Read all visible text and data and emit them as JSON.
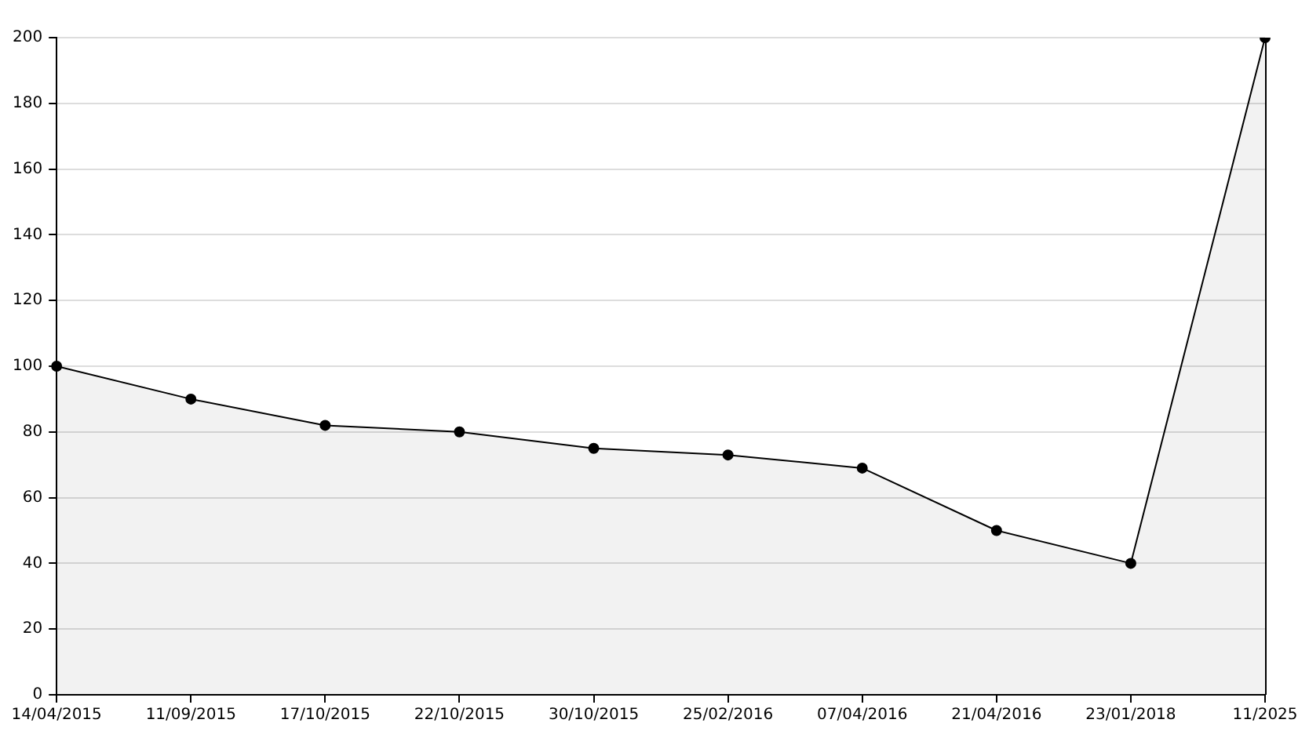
{
  "chart_data": {
    "type": "area",
    "categories": [
      "14/04/2015",
      "11/09/2015",
      "17/10/2015",
      "22/10/2015",
      "30/10/2015",
      "25/02/2016",
      "07/04/2016",
      "21/04/2016",
      "23/01/2018",
      "11/2025"
    ],
    "series": [
      {
        "color": "#000000",
        "values": [
          100,
          90,
          82,
          80,
          75,
          73,
          69,
          50,
          40,
          200
        ]
      }
    ],
    "ylim": [
      0,
      200
    ],
    "yticks": [
      0,
      20,
      40,
      60,
      80,
      100,
      120,
      140,
      160,
      180,
      200
    ],
    "grid": "y",
    "legend": false,
    "marker": "circle",
    "line_style": "solid"
  }
}
